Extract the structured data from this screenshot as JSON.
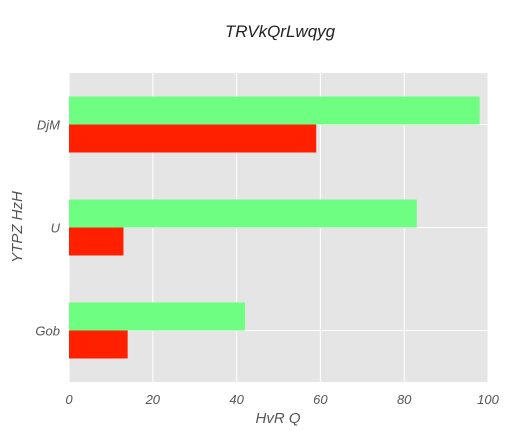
{
  "chart_data": {
    "type": "bar",
    "orientation": "horizontal",
    "title": "TRVkQrLwqyg",
    "xlabel": "HvR  Q",
    "ylabel": "YTPZ HzH",
    "categories": [
      "DjM",
      "U",
      "Gob"
    ],
    "series": [
      {
        "values": [
          98,
          83,
          42
        ],
        "color": "#6eff82"
      },
      {
        "values": [
          59,
          13,
          14
        ],
        "color": "#ff2000"
      }
    ],
    "xlim": [
      0,
      100
    ],
    "xticks": [
      0,
      20,
      40,
      60,
      80,
      100
    ],
    "grid": true,
    "legend": "none",
    "background_color": "#e5e5e5",
    "grid_color": "#ffffff"
  }
}
